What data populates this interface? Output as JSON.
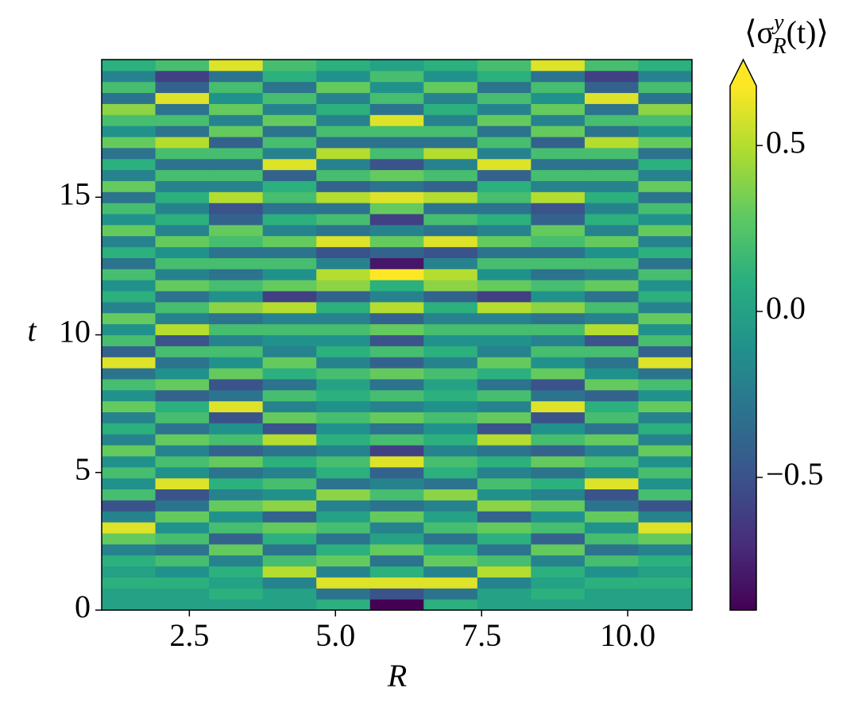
{
  "chart_data": {
    "type": "heatmap",
    "x_label": "R",
    "y_label": "t",
    "colorbar_label": {
      "open": "⟨σ",
      "sup": "y",
      "sub": "R",
      "close": "(t)⟩"
    },
    "colormap": "viridis",
    "clim": [
      -0.9,
      0.68
    ],
    "colorbar_extend": "max",
    "xlim": [
      1,
      11.1
    ],
    "ylim": [
      0,
      20
    ],
    "x_edges": [
      1,
      1.918,
      2.836,
      3.755,
      4.673,
      5.591,
      6.509,
      7.427,
      8.345,
      9.264,
      10.182,
      11.1
    ],
    "y_edges": [
      0,
      0.4,
      0.8,
      1.2,
      1.6,
      2.0,
      2.4,
      2.8,
      3.2,
      3.6,
      4.0,
      4.4,
      4.8,
      5.2,
      5.6,
      6.0,
      6.4,
      6.8,
      7.2,
      7.6,
      8.0,
      8.4,
      8.8,
      9.2,
      9.6,
      10.0,
      10.4,
      10.8,
      11.2,
      11.6,
      12.0,
      12.4,
      12.8,
      13.2,
      13.6,
      14.0,
      14.4,
      14.8,
      15.2,
      15.6,
      16.0,
      16.4,
      16.8,
      17.2,
      17.6,
      18.0,
      18.4,
      18.8,
      19.2,
      19.6,
      20.0
    ],
    "xticks": [
      2.5,
      {
        "value": 5.0,
        "label": "5.0"
      },
      7.5,
      {
        "value": 10.0,
        "label": "10.0"
      }
    ],
    "yticks": [
      0,
      5,
      10,
      15
    ],
    "colorbar_ticks": [
      {
        "value": -0.5,
        "label": "−0.5"
      },
      {
        "value": 0.0,
        "label": "0.0"
      },
      {
        "value": 0.5,
        "label": "0.5"
      }
    ],
    "values": [
      [
        0.0,
        0.0,
        0.0,
        0.0,
        0.1,
        -0.9,
        0.1,
        0.0,
        0.0,
        0.0,
        0.0
      ],
      [
        0.0,
        0.0,
        0.1,
        0.0,
        -0.3,
        -0.5,
        -0.3,
        0.0,
        0.1,
        0.0,
        0.0
      ],
      [
        0.1,
        0.1,
        0.0,
        -0.2,
        0.6,
        0.6,
        0.6,
        -0.2,
        0.0,
        0.1,
        0.1
      ],
      [
        0.0,
        -0.1,
        0.1,
        0.5,
        -0.2,
        0.1,
        -0.2,
        0.5,
        0.1,
        -0.1,
        0.0
      ],
      [
        0.1,
        0.2,
        -0.2,
        0.2,
        0.3,
        -0.3,
        0.3,
        0.2,
        -0.2,
        0.2,
        0.1
      ],
      [
        -0.2,
        -0.3,
        0.3,
        -0.3,
        0.1,
        0.3,
        0.1,
        -0.3,
        0.3,
        -0.3,
        -0.2
      ],
      [
        0.3,
        0.2,
        -0.4,
        0.1,
        -0.3,
        0.0,
        -0.3,
        0.1,
        -0.4,
        0.2,
        0.3
      ],
      [
        0.6,
        -0.1,
        0.2,
        0.3,
        0.2,
        -0.2,
        0.2,
        0.3,
        0.2,
        -0.1,
        0.6
      ],
      [
        -0.2,
        0.3,
        -0.1,
        -0.4,
        0.0,
        0.3,
        0.0,
        -0.4,
        -0.1,
        0.3,
        -0.2
      ],
      [
        -0.5,
        -0.3,
        0.3,
        0.4,
        -0.2,
        -0.3,
        -0.2,
        0.4,
        0.3,
        -0.3,
        -0.5
      ],
      [
        0.2,
        -0.5,
        -0.2,
        -0.1,
        0.4,
        0.2,
        0.4,
        -0.1,
        -0.2,
        -0.5,
        0.2
      ],
      [
        -0.1,
        0.6,
        0.1,
        0.2,
        -0.3,
        -0.2,
        -0.3,
        0.2,
        0.1,
        0.6,
        -0.1
      ],
      [
        0.2,
        -0.1,
        -0.3,
        -0.2,
        0.1,
        -0.4,
        0.1,
        -0.2,
        -0.3,
        -0.1,
        0.2
      ],
      [
        -0.1,
        0.2,
        0.3,
        0.1,
        0.2,
        0.6,
        0.2,
        0.1,
        0.3,
        0.2,
        -0.1
      ],
      [
        0.3,
        -0.2,
        -0.4,
        -0.3,
        -0.2,
        -0.6,
        -0.2,
        -0.3,
        -0.4,
        -0.2,
        0.3
      ],
      [
        -0.2,
        0.3,
        0.2,
        0.5,
        0.1,
        0.2,
        0.1,
        0.5,
        0.2,
        0.3,
        -0.2
      ],
      [
        0.1,
        -0.3,
        -0.1,
        -0.5,
        -0.1,
        -0.3,
        -0.1,
        -0.5,
        -0.1,
        -0.3,
        0.1
      ],
      [
        -0.2,
        0.2,
        -0.5,
        0.3,
        0.2,
        0.3,
        0.2,
        0.3,
        -0.5,
        0.2,
        -0.2
      ],
      [
        0.3,
        0.1,
        0.6,
        -0.2,
        -0.1,
        -0.2,
        -0.1,
        -0.2,
        0.6,
        0.1,
        0.3
      ],
      [
        -0.1,
        -0.4,
        -0.3,
        0.2,
        0.1,
        0.2,
        0.1,
        0.2,
        -0.3,
        -0.4,
        -0.1
      ],
      [
        0.2,
        0.3,
        -0.5,
        -0.3,
        0.0,
        -0.3,
        0.0,
        -0.3,
        -0.5,
        0.3,
        0.2
      ],
      [
        -0.3,
        -0.1,
        0.3,
        0.1,
        0.2,
        0.3,
        0.2,
        0.1,
        0.3,
        -0.1,
        -0.3
      ],
      [
        0.6,
        -0.3,
        -0.1,
        0.3,
        -0.2,
        -0.4,
        -0.2,
        0.3,
        -0.1,
        -0.3,
        0.6
      ],
      [
        -0.4,
        0.2,
        0.2,
        -0.2,
        0.1,
        0.2,
        0.1,
        -0.2,
        0.2,
        0.2,
        -0.4
      ],
      [
        0.2,
        -0.5,
        -0.2,
        -0.1,
        -0.1,
        -0.5,
        -0.1,
        -0.1,
        -0.2,
        -0.5,
        0.2
      ],
      [
        -0.1,
        0.5,
        0.2,
        0.2,
        0.2,
        0.3,
        0.2,
        0.2,
        0.2,
        0.5,
        -0.1
      ],
      [
        0.3,
        -0.2,
        -0.3,
        -0.2,
        -0.2,
        -0.4,
        -0.2,
        -0.2,
        -0.3,
        -0.2,
        0.3
      ],
      [
        -0.2,
        0.2,
        0.4,
        0.5,
        0.1,
        0.5,
        0.1,
        0.5,
        0.4,
        0.2,
        -0.2
      ],
      [
        0.1,
        -0.3,
        -0.1,
        -0.6,
        -0.4,
        -0.2,
        -0.4,
        -0.6,
        -0.1,
        -0.3,
        0.1
      ],
      [
        -0.1,
        0.3,
        0.2,
        0.3,
        0.4,
        0.1,
        0.4,
        0.3,
        0.2,
        0.3,
        -0.1
      ],
      [
        0.2,
        -0.2,
        -0.3,
        -0.1,
        0.5,
        0.68,
        0.5,
        -0.1,
        -0.3,
        -0.2,
        0.2
      ],
      [
        -0.3,
        0.2,
        0.2,
        0.2,
        -0.2,
        -0.8,
        -0.2,
        0.2,
        0.2,
        0.2,
        -0.3
      ],
      [
        0.1,
        -0.1,
        -0.3,
        -0.3,
        -0.5,
        -0.4,
        -0.5,
        -0.3,
        -0.3,
        -0.1,
        0.1
      ],
      [
        -0.2,
        0.3,
        0.2,
        0.3,
        0.6,
        0.3,
        0.6,
        0.3,
        0.2,
        0.3,
        -0.2
      ],
      [
        0.3,
        -0.2,
        0.3,
        -0.2,
        -0.3,
        -0.2,
        -0.3,
        -0.2,
        0.3,
        -0.2,
        0.3
      ],
      [
        -0.1,
        0.1,
        -0.4,
        0.1,
        0.2,
        -0.6,
        0.2,
        0.1,
        -0.4,
        0.1,
        -0.1
      ],
      [
        0.2,
        -0.2,
        -0.5,
        -0.3,
        -0.3,
        0.3,
        -0.3,
        -0.3,
        -0.5,
        -0.2,
        0.2
      ],
      [
        -0.3,
        0.1,
        0.5,
        0.2,
        0.5,
        0.6,
        0.5,
        0.2,
        0.5,
        0.1,
        -0.3
      ],
      [
        0.3,
        -0.2,
        -0.2,
        0.1,
        -0.4,
        -0.3,
        -0.4,
        0.1,
        -0.2,
        -0.2,
        0.3
      ],
      [
        -0.2,
        0.2,
        0.2,
        -0.4,
        0.2,
        0.3,
        0.2,
        -0.4,
        0.2,
        0.2,
        -0.2
      ],
      [
        0.1,
        -0.3,
        -0.3,
        0.6,
        -0.2,
        -0.5,
        -0.2,
        0.6,
        -0.3,
        -0.3,
        0.1
      ],
      [
        -0.3,
        0.2,
        0.2,
        -0.2,
        0.5,
        0.2,
        0.5,
        -0.2,
        0.2,
        0.2,
        -0.3
      ],
      [
        0.3,
        0.5,
        -0.4,
        0.2,
        -0.3,
        -0.3,
        -0.3,
        0.2,
        -0.4,
        0.5,
        0.3
      ],
      [
        -0.1,
        -0.3,
        0.3,
        -0.3,
        0.2,
        0.2,
        0.2,
        -0.3,
        0.3,
        -0.3,
        -0.1
      ],
      [
        0.2,
        0.2,
        -0.2,
        0.3,
        -0.2,
        0.6,
        -0.2,
        0.3,
        -0.2,
        0.2,
        0.2
      ],
      [
        0.4,
        -0.3,
        0.3,
        -0.2,
        0.1,
        -0.3,
        0.1,
        -0.2,
        0.3,
        -0.3,
        0.4
      ],
      [
        -0.3,
        0.6,
        -0.1,
        0.2,
        -0.2,
        0.2,
        -0.2,
        0.2,
        -0.1,
        0.6,
        -0.3
      ],
      [
        0.2,
        -0.4,
        0.2,
        -0.3,
        0.3,
        -0.1,
        0.3,
        -0.3,
        0.2,
        -0.4,
        0.2
      ],
      [
        -0.2,
        -0.6,
        -0.3,
        0.1,
        -0.1,
        0.2,
        -0.1,
        0.1,
        -0.3,
        -0.6,
        -0.2
      ],
      [
        0.1,
        0.2,
        0.6,
        0.2,
        0.1,
        0.0,
        0.1,
        0.2,
        0.6,
        0.2,
        0.1
      ]
    ]
  }
}
